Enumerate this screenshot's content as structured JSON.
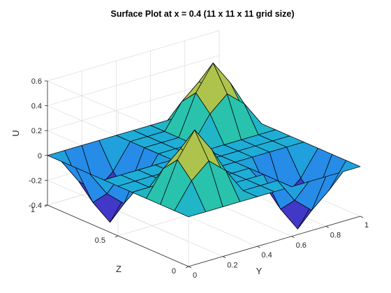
{
  "chart_data": {
    "type": "surface",
    "title": "Surface Plot at x = 0.4 (11 x 11 x 11 grid size)",
    "xlabel": "Y",
    "ylabel": "Z",
    "zlabel": "U",
    "xlim": [
      0,
      1
    ],
    "ylim": [
      0,
      1
    ],
    "zlim": [
      -0.4,
      0.6
    ],
    "x_ticks": [
      "0",
      "0.2",
      "0.4",
      "0.6",
      "0.8",
      "1"
    ],
    "y_ticks": [
      "0",
      "0.5",
      "1"
    ],
    "z_ticks": [
      "-0.4",
      "-0.2",
      "0",
      "0.2",
      "0.4",
      "0.6"
    ],
    "grid": true,
    "colormap": "parula",
    "grid_size": [
      11,
      11
    ],
    "y_values": [
      0,
      0.1,
      0.2,
      0.3,
      0.4,
      0.5,
      0.6,
      0.7,
      0.8,
      0.9,
      1
    ],
    "z_values": [
      0,
      0.1,
      0.2,
      0.3,
      0.4,
      0.5,
      0.6,
      0.7,
      0.8,
      0.9,
      1
    ],
    "u_values": [
      [
        0,
        0,
        0,
        0,
        0,
        0,
        0,
        0,
        0,
        0,
        0
      ],
      [
        0,
        0.2,
        0.32,
        0.2,
        0,
        0,
        0,
        -0.2,
        -0.32,
        -0.2,
        0
      ],
      [
        0,
        0.32,
        0.52,
        0.32,
        0,
        0,
        0,
        -0.32,
        -0.52,
        -0.32,
        0
      ],
      [
        0,
        0.2,
        0.32,
        0.2,
        0,
        0,
        0,
        -0.2,
        -0.32,
        -0.2,
        0
      ],
      [
        0,
        0,
        0,
        0,
        0,
        0,
        0,
        0,
        0,
        0,
        0
      ],
      [
        0,
        0,
        0,
        0,
        0,
        0,
        0,
        0,
        0,
        0,
        0
      ],
      [
        0,
        0,
        0,
        0,
        0,
        0,
        0,
        0,
        0,
        0,
        0
      ],
      [
        0,
        -0.2,
        -0.32,
        -0.2,
        0,
        0,
        0,
        0.2,
        0.32,
        0.2,
        0
      ],
      [
        0,
        -0.32,
        -0.52,
        -0.32,
        0,
        0,
        0,
        0.32,
        0.52,
        0.32,
        0
      ],
      [
        0,
        -0.2,
        -0.32,
        -0.2,
        0,
        0,
        0,
        0.2,
        0.32,
        0.2,
        0
      ],
      [
        0,
        0,
        0,
        0,
        0,
        0,
        0,
        0,
        0,
        0,
        0
      ]
    ]
  }
}
